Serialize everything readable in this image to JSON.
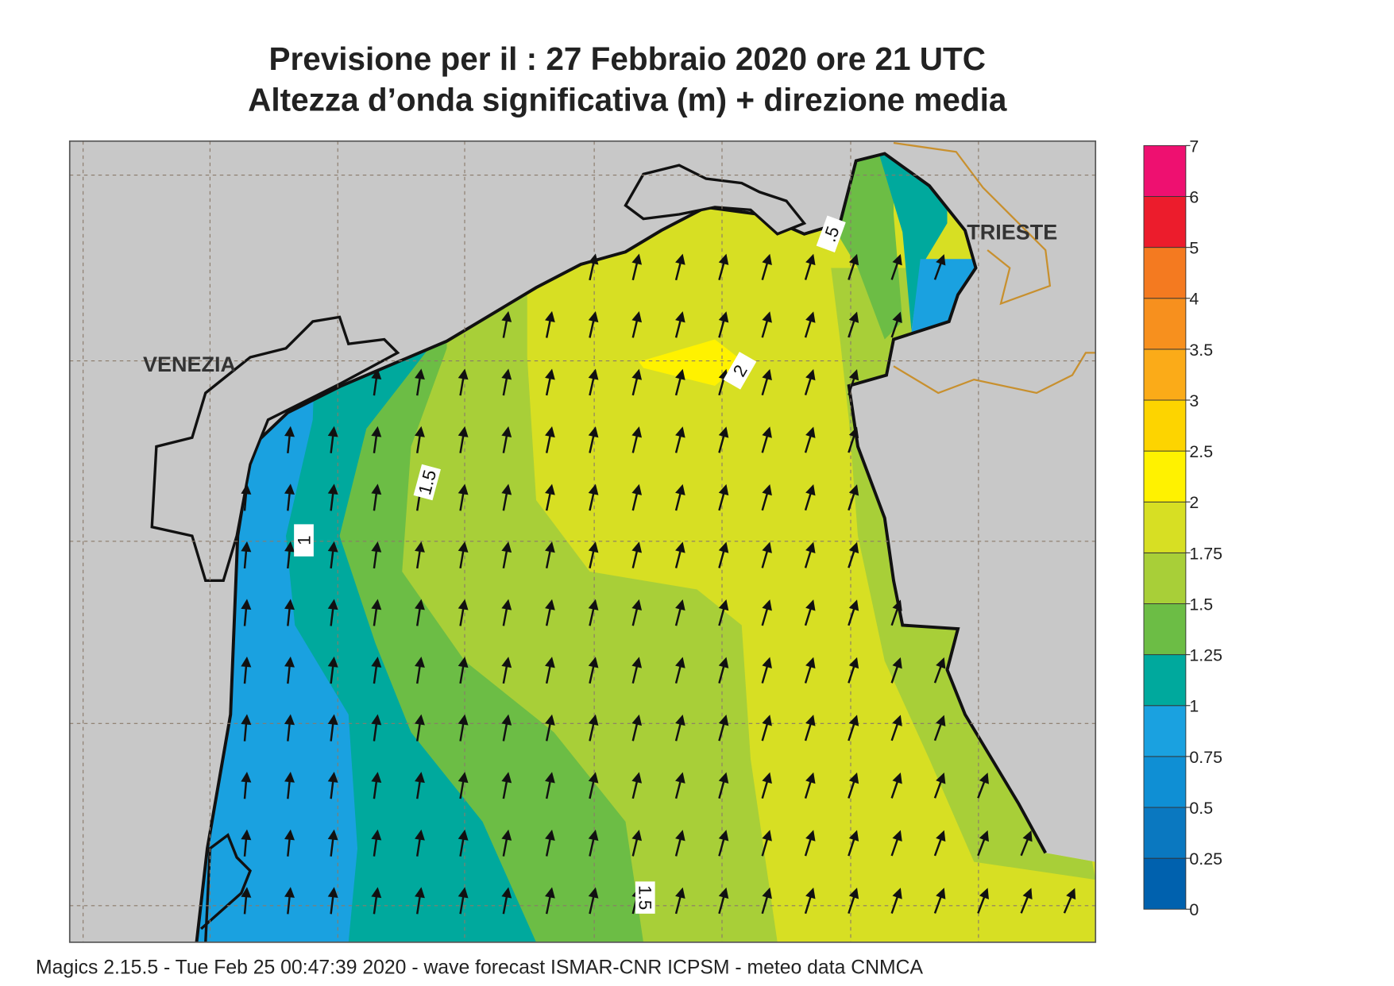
{
  "header": {
    "title": "Previsione per il  :  27  Febbraio 2020   ore 21 UTC",
    "subtitle": "Altezza d’onda significativa (m) + direzione media"
  },
  "map": {
    "places": [
      "VENEZIA",
      "TRIESTE"
    ],
    "contour_labels": [
      "1.5",
      "1",
      "2",
      ".5",
      "1.5"
    ]
  },
  "legend": {
    "ticks": [
      0,
      0.25,
      0.5,
      0.75,
      1,
      1.25,
      1.5,
      1.75,
      2,
      2.5,
      3,
      3.5,
      4,
      5,
      6,
      7
    ],
    "colors": [
      "#0061ae",
      "#0a78c0",
      "#0f8fd4",
      "#1aa1e0",
      "#00a99d",
      "#6cbd45",
      "#a8cf38",
      "#d7df23",
      "#fff200",
      "#fdd400",
      "#fbab18",
      "#f7901e",
      "#f47a20",
      "#ec1c2c",
      "#ee1070"
    ]
  },
  "footer": "Magics 2.15.5 - Tue Feb 25 00:47:39 2020 - wave forecast  ISMAR-CNR  ICPSM - meteo data   CNMCA"
}
